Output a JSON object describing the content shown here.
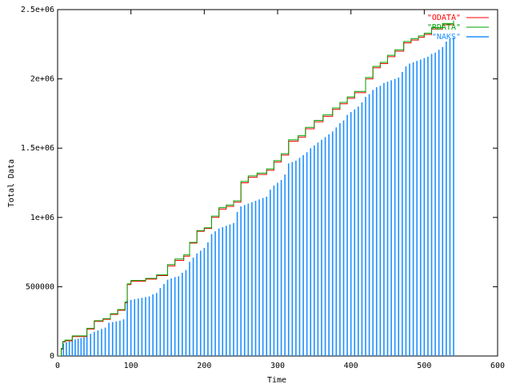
{
  "chart_data": {
    "type": "line",
    "xlabel": "Time",
    "ylabel": "Total Data",
    "xlim": [
      0,
      600
    ],
    "ylim": [
      0,
      2500000
    ],
    "x_ticks": [
      "0",
      "100",
      "200",
      "300",
      "400",
      "500",
      "600"
    ],
    "y_ticks": [
      "0",
      "500000",
      "1e+06",
      "1.5e+06",
      "2e+06",
      "2.5e+06"
    ],
    "grid": false,
    "legend_position": "top-right",
    "series": [
      {
        "name": "\"ODATA\"",
        "style": "steps",
        "color": "#ff0000",
        "points": [
          [
            0,
            0
          ],
          [
            5,
            50000
          ],
          [
            7,
            100000
          ],
          [
            10,
            110000
          ],
          [
            20,
            140000
          ],
          [
            40,
            195000
          ],
          [
            50,
            250000
          ],
          [
            62,
            265000
          ],
          [
            72,
            300000
          ],
          [
            82,
            330000
          ],
          [
            92,
            385000
          ],
          [
            95,
            515000
          ],
          [
            100,
            540000
          ],
          [
            120,
            555000
          ],
          [
            135,
            580000
          ],
          [
            150,
            650000
          ],
          [
            160,
            690000
          ],
          [
            172,
            720000
          ],
          [
            180,
            815000
          ],
          [
            190,
            900000
          ],
          [
            200,
            920000
          ],
          [
            210,
            1000000
          ],
          [
            220,
            1060000
          ],
          [
            230,
            1080000
          ],
          [
            240,
            1110000
          ],
          [
            250,
            1250000
          ],
          [
            260,
            1290000
          ],
          [
            272,
            1310000
          ],
          [
            285,
            1340000
          ],
          [
            295,
            1400000
          ],
          [
            305,
            1450000
          ],
          [
            315,
            1550000
          ],
          [
            328,
            1580000
          ],
          [
            338,
            1640000
          ],
          [
            350,
            1690000
          ],
          [
            362,
            1730000
          ],
          [
            375,
            1780000
          ],
          [
            385,
            1820000
          ],
          [
            395,
            1860000
          ],
          [
            405,
            1900000
          ],
          [
            420,
            2000000
          ],
          [
            430,
            2080000
          ],
          [
            440,
            2110000
          ],
          [
            450,
            2160000
          ],
          [
            460,
            2200000
          ],
          [
            472,
            2260000
          ],
          [
            482,
            2280000
          ],
          [
            492,
            2300000
          ],
          [
            500,
            2320000
          ],
          [
            510,
            2360000
          ],
          [
            525,
            2390000
          ],
          [
            540,
            2410000
          ]
        ]
      },
      {
        "name": "\"RDATA\"",
        "style": "steps",
        "color": "#00a000",
        "points": [
          [
            0,
            0
          ],
          [
            5,
            55000
          ],
          [
            7,
            105000
          ],
          [
            10,
            115000
          ],
          [
            20,
            145000
          ],
          [
            40,
            200000
          ],
          [
            50,
            255000
          ],
          [
            62,
            270000
          ],
          [
            72,
            305000
          ],
          [
            82,
            335000
          ],
          [
            92,
            390000
          ],
          [
            95,
            520000
          ],
          [
            100,
            545000
          ],
          [
            120,
            560000
          ],
          [
            135,
            585000
          ],
          [
            150,
            660000
          ],
          [
            160,
            700000
          ],
          [
            172,
            730000
          ],
          [
            180,
            820000
          ],
          [
            190,
            905000
          ],
          [
            200,
            925000
          ],
          [
            210,
            1010000
          ],
          [
            220,
            1070000
          ],
          [
            230,
            1090000
          ],
          [
            240,
            1120000
          ],
          [
            250,
            1260000
          ],
          [
            260,
            1300000
          ],
          [
            272,
            1320000
          ],
          [
            285,
            1350000
          ],
          [
            295,
            1410000
          ],
          [
            305,
            1460000
          ],
          [
            315,
            1560000
          ],
          [
            328,
            1590000
          ],
          [
            338,
            1650000
          ],
          [
            350,
            1700000
          ],
          [
            362,
            1740000
          ],
          [
            375,
            1790000
          ],
          [
            385,
            1830000
          ],
          [
            395,
            1870000
          ],
          [
            405,
            1910000
          ],
          [
            420,
            2010000
          ],
          [
            430,
            2090000
          ],
          [
            440,
            2120000
          ],
          [
            450,
            2170000
          ],
          [
            460,
            2210000
          ],
          [
            472,
            2270000
          ],
          [
            482,
            2290000
          ],
          [
            492,
            2310000
          ],
          [
            500,
            2330000
          ],
          [
            510,
            2370000
          ],
          [
            525,
            2400000
          ],
          [
            540,
            2420000
          ]
        ]
      },
      {
        "name": "\"NAKS\"",
        "style": "impulses",
        "color": "#1e90ff",
        "points": [
          [
            8,
            90000
          ],
          [
            12,
            100000
          ],
          [
            16,
            105000
          ],
          [
            20,
            110000
          ],
          [
            24,
            120000
          ],
          [
            28,
            125000
          ],
          [
            32,
            130000
          ],
          [
            36,
            135000
          ],
          [
            40,
            145000
          ],
          [
            45,
            160000
          ],
          [
            50,
            175000
          ],
          [
            55,
            185000
          ],
          [
            60,
            195000
          ],
          [
            65,
            205000
          ],
          [
            70,
            240000
          ],
          [
            75,
            245000
          ],
          [
            80,
            250000
          ],
          [
            85,
            255000
          ],
          [
            90,
            265000
          ],
          [
            95,
            400000
          ],
          [
            100,
            405000
          ],
          [
            105,
            410000
          ],
          [
            110,
            415000
          ],
          [
            115,
            420000
          ],
          [
            120,
            425000
          ],
          [
            125,
            430000
          ],
          [
            130,
            445000
          ],
          [
            135,
            455000
          ],
          [
            140,
            490000
          ],
          [
            145,
            520000
          ],
          [
            150,
            550000
          ],
          [
            155,
            560000
          ],
          [
            160,
            570000
          ],
          [
            165,
            575000
          ],
          [
            170,
            600000
          ],
          [
            175,
            620000
          ],
          [
            180,
            680000
          ],
          [
            185,
            710000
          ],
          [
            190,
            740000
          ],
          [
            195,
            760000
          ],
          [
            200,
            780000
          ],
          [
            205,
            820000
          ],
          [
            210,
            880000
          ],
          [
            215,
            900000
          ],
          [
            220,
            920000
          ],
          [
            225,
            930000
          ],
          [
            230,
            940000
          ],
          [
            235,
            950000
          ],
          [
            240,
            960000
          ],
          [
            245,
            1040000
          ],
          [
            250,
            1080000
          ],
          [
            255,
            1090000
          ],
          [
            260,
            1100000
          ],
          [
            265,
            1110000
          ],
          [
            270,
            1120000
          ],
          [
            275,
            1130000
          ],
          [
            280,
            1140000
          ],
          [
            285,
            1150000
          ],
          [
            290,
            1200000
          ],
          [
            295,
            1230000
          ],
          [
            300,
            1250000
          ],
          [
            305,
            1270000
          ],
          [
            310,
            1310000
          ],
          [
            315,
            1390000
          ],
          [
            320,
            1400000
          ],
          [
            325,
            1410000
          ],
          [
            330,
            1430000
          ],
          [
            335,
            1450000
          ],
          [
            340,
            1470000
          ],
          [
            345,
            1500000
          ],
          [
            350,
            1520000
          ],
          [
            355,
            1540000
          ],
          [
            360,
            1560000
          ],
          [
            365,
            1580000
          ],
          [
            370,
            1600000
          ],
          [
            375,
            1620000
          ],
          [
            380,
            1650000
          ],
          [
            385,
            1680000
          ],
          [
            390,
            1700000
          ],
          [
            395,
            1740000
          ],
          [
            400,
            1760000
          ],
          [
            405,
            1780000
          ],
          [
            410,
            1800000
          ],
          [
            415,
            1830000
          ],
          [
            420,
            1870000
          ],
          [
            425,
            1890000
          ],
          [
            430,
            1920000
          ],
          [
            435,
            1940000
          ],
          [
            440,
            1950000
          ],
          [
            445,
            1970000
          ],
          [
            450,
            1980000
          ],
          [
            455,
            1990000
          ],
          [
            460,
            2000000
          ],
          [
            465,
            2010000
          ],
          [
            470,
            2050000
          ],
          [
            475,
            2090000
          ],
          [
            480,
            2110000
          ],
          [
            485,
            2120000
          ],
          [
            490,
            2130000
          ],
          [
            495,
            2140000
          ],
          [
            500,
            2150000
          ],
          [
            505,
            2160000
          ],
          [
            510,
            2180000
          ],
          [
            515,
            2190000
          ],
          [
            520,
            2210000
          ],
          [
            525,
            2230000
          ],
          [
            530,
            2270000
          ],
          [
            535,
            2290000
          ],
          [
            540,
            2300000
          ]
        ]
      }
    ]
  }
}
